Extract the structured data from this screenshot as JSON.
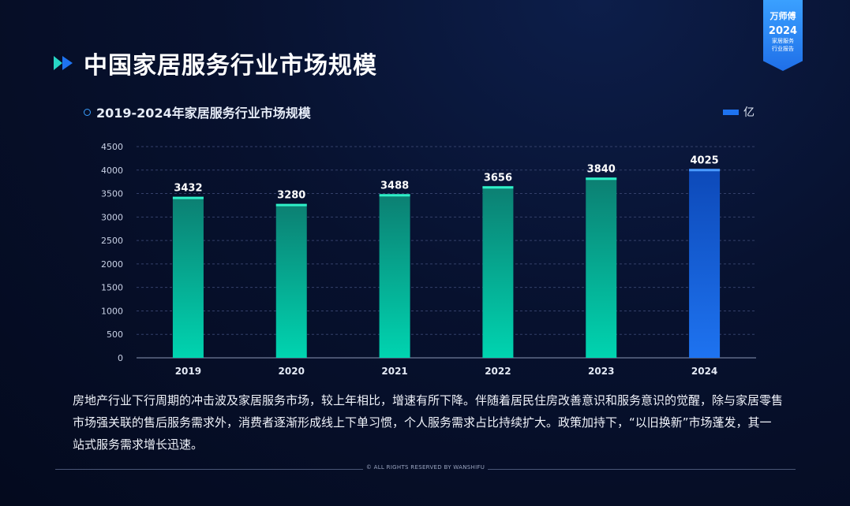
{
  "badge": {
    "brand": "万师傅",
    "year": "2024",
    "line1": "家居服务",
    "line2": "行业报告"
  },
  "page_title": "中国家居服务行业市场规模",
  "description": "房地产行业下行周期的冲击波及家居服务市场，较上年相比，增速有所下降。伴随着居民住房改善意识和服务意识的觉醒，除与家居零售市场强关联的售后服务需求外，消费者逐渐形成线上下单习惯，个人服务需求占比持续扩大。政策加持下，“以旧换新”市场蓬发，其一站式服务需求增长迅速。",
  "footer": "© ALL RIGHTS RESERVED BY WANSHIFU",
  "colors": {
    "bar_teal_top": "#0c7f72",
    "bar_teal_bottom": "#00d4b0",
    "bar_highlight": "#1e73f0",
    "cap_teal": "#2ff0c8",
    "cap_blue": "#4b9bff"
  },
  "chart_data": {
    "type": "bar",
    "title": "2019-2024年家居服务行业市场规模",
    "categories": [
      "2019",
      "2020",
      "2021",
      "2022",
      "2023",
      "2024"
    ],
    "series": [
      {
        "name": "亿",
        "values": [
          3432,
          3280,
          3488,
          3656,
          3840,
          4025
        ]
      }
    ],
    "ylim": [
      0,
      4500
    ],
    "yticks": [
      0,
      500,
      1000,
      1500,
      2000,
      2500,
      3000,
      3500,
      4000,
      4500
    ],
    "highlight_category": "2024",
    "grid": true,
    "legend": "top-right"
  }
}
